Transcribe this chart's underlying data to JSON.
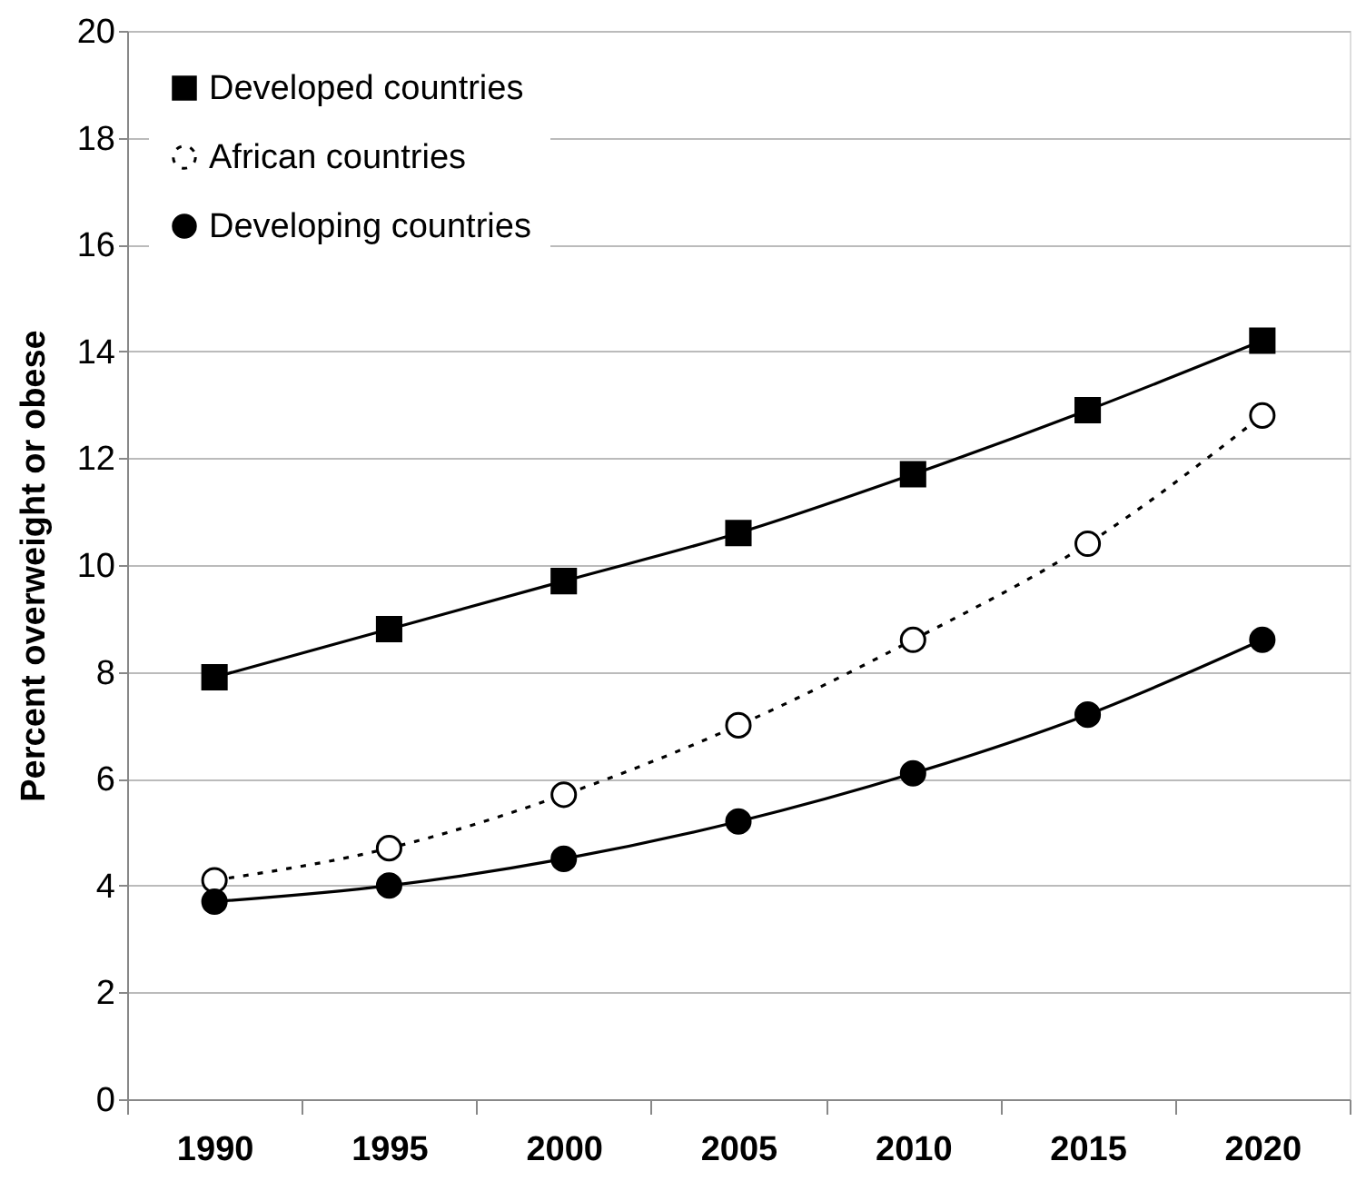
{
  "chart_data": {
    "type": "line",
    "ylabel": "Percent overweight or obese",
    "categories": [
      "1990",
      "1995",
      "2000",
      "2005",
      "2010",
      "2015",
      "2020"
    ],
    "ylim": [
      0,
      20
    ],
    "yticks": [
      0,
      2,
      4,
      6,
      8,
      10,
      12,
      14,
      16,
      18,
      20
    ],
    "grid": "y",
    "legend": "top left",
    "series": [
      {
        "name": "Developed countries",
        "color": "#000000",
        "marker": "square",
        "line_style": "solid",
        "values": [
          7.9,
          8.8,
          9.7,
          10.6,
          11.7,
          12.9,
          14.2
        ]
      },
      {
        "name": "African countries",
        "color": "#000000",
        "marker": "circle",
        "line_style": "dotted",
        "values": [
          4.1,
          4.7,
          5.7,
          7.0,
          8.6,
          10.4,
          12.8
        ]
      },
      {
        "name": "Developing countries",
        "color": "#000000",
        "marker": "circle",
        "line_style": "solid",
        "values": [
          3.7,
          4.0,
          4.5,
          5.2,
          6.1,
          7.2,
          8.6
        ]
      }
    ]
  }
}
